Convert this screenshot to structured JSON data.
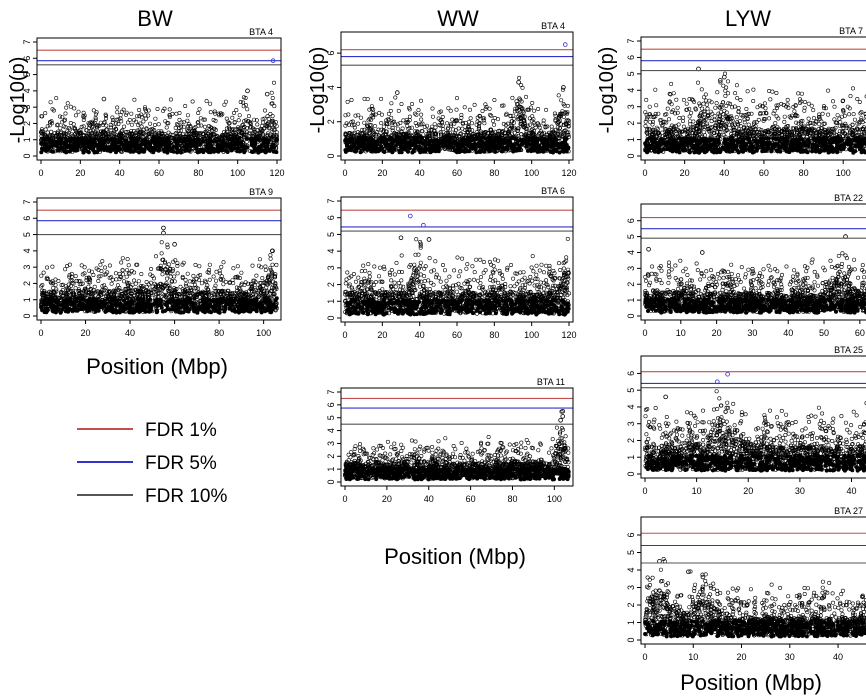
{
  "figure": {
    "columns": [
      {
        "id": "bw",
        "title": "BW",
        "ylabel": "-Log10(p)",
        "xlabel": "Position (Mbp)"
      },
      {
        "id": "ww",
        "title": "WW",
        "ylabel": "-Log10(p)",
        "xlabel": "Position (Mbp)"
      },
      {
        "id": "lyw",
        "title": "LYW",
        "ylabel": "-Log10(p)",
        "xlabel": "Position (Mbp)"
      }
    ],
    "legend": {
      "placement": "left-middle",
      "items": [
        {
          "label": "FDR 1%",
          "color": "#c0504d"
        },
        {
          "label": "FDR 5%",
          "color": "#3333cc"
        },
        {
          "label": "FDR 10%",
          "color": "#555555"
        }
      ]
    }
  },
  "chart_data": [
    {
      "type": "scatter",
      "column": "BW",
      "title": "BTA 4",
      "xlim": [
        0,
        120
      ],
      "ylim": [
        0,
        7
      ],
      "xticks": [
        0,
        20,
        40,
        60,
        80,
        100,
        120
      ],
      "yticks": [
        0,
        1,
        2,
        3,
        4,
        5,
        6,
        7
      ],
      "thresholds": [
        {
          "name": "FDR 1%",
          "y": 6.5
        },
        {
          "name": "FDR 5%",
          "y": 5.85
        },
        {
          "name": "FDR 10%",
          "y": 5.6
        }
      ],
      "notable_points": [
        {
          "x": 118,
          "y": 5.85
        },
        {
          "x": 105,
          "y": 4.0
        },
        {
          "x": 115,
          "y": 3.8
        },
        {
          "x": 32,
          "y": 3.5
        }
      ],
      "baseline": 1.2,
      "spread": 1.0,
      "peaks": [
        {
          "x": 105,
          "h": 1.2
        },
        {
          "x": 117,
          "h": 1.2
        }
      ]
    },
    {
      "type": "scatter",
      "column": "BW",
      "title": "BTA 9",
      "xlim": [
        0,
        106
      ],
      "ylim": [
        0,
        7
      ],
      "xticks": [
        0,
        20,
        40,
        60,
        80,
        100
      ],
      "yticks": [
        0,
        1,
        2,
        3,
        4,
        5,
        6,
        7
      ],
      "thresholds": [
        {
          "name": "FDR 1%",
          "y": 6.5
        },
        {
          "name": "FDR 5%",
          "y": 5.85
        },
        {
          "name": "FDR 10%",
          "y": 5.0
        }
      ],
      "notable_points": [
        {
          "x": 55,
          "y": 5.4
        },
        {
          "x": 55,
          "y": 5.1
        },
        {
          "x": 60,
          "y": 4.4
        },
        {
          "x": 104,
          "y": 4.0
        }
      ],
      "baseline": 1.3,
      "spread": 1.0,
      "peaks": [
        {
          "x": 55,
          "h": 2.0
        },
        {
          "x": 103,
          "h": 1.2
        }
      ]
    },
    {
      "type": "scatter",
      "column": "WW",
      "title": "BTA 4",
      "xlim": [
        0,
        120
      ],
      "ylim": [
        0,
        7
      ],
      "xticks": [
        0,
        20,
        40,
        60,
        80,
        100,
        120
      ],
      "yticks": [
        0,
        2,
        4,
        6
      ],
      "thresholds": [
        {
          "name": "FDR 1%",
          "y": 6.2
        },
        {
          "name": "FDR 5%",
          "y": 5.8
        },
        {
          "name": "FDR 10%",
          "y": 5.3
        }
      ],
      "notable_points": [
        {
          "x": 118,
          "y": 6.5
        },
        {
          "x": 28,
          "y": 3.7
        },
        {
          "x": 93,
          "y": 4.3
        },
        {
          "x": 117,
          "y": 4.0
        }
      ],
      "baseline": 1.1,
      "spread": 1.0,
      "peaks": [
        {
          "x": 93,
          "h": 2.0
        },
        {
          "x": 117,
          "h": 1.8
        }
      ]
    },
    {
      "type": "scatter",
      "column": "WW",
      "title": "BTA 6",
      "xlim": [
        0,
        120
      ],
      "ylim": [
        0,
        7
      ],
      "xticks": [
        0,
        20,
        40,
        60,
        80,
        100,
        120
      ],
      "yticks": [
        0,
        1,
        2,
        3,
        4,
        5,
        6,
        7
      ],
      "thresholds": [
        {
          "name": "FDR 1%",
          "y": 6.45
        },
        {
          "name": "FDR 5%",
          "y": 5.45
        },
        {
          "name": "FDR 10%",
          "y": 5.2
        }
      ],
      "notable_points": [
        {
          "x": 35,
          "y": 6.1
        },
        {
          "x": 42,
          "y": 5.55
        },
        {
          "x": 30,
          "y": 4.8
        },
        {
          "x": 45,
          "y": 4.7
        }
      ],
      "baseline": 1.3,
      "spread": 1.1,
      "peaks": [
        {
          "x": 38,
          "h": 1.8
        },
        {
          "x": 118,
          "h": 1.2
        }
      ]
    },
    {
      "type": "scatter",
      "column": "WW",
      "title": "BTA 11",
      "xlim": [
        0,
        107
      ],
      "ylim": [
        0,
        7
      ],
      "xticks": [
        0,
        20,
        40,
        60,
        80,
        100
      ],
      "yticks": [
        0,
        1,
        2,
        3,
        4,
        5,
        6,
        7
      ],
      "thresholds": [
        {
          "name": "FDR 1%",
          "y": 6.5
        },
        {
          "name": "FDR 5%",
          "y": 5.75
        },
        {
          "name": "FDR 10%",
          "y": 4.5
        }
      ],
      "notable_points": [
        {
          "x": 104,
          "y": 5.5
        },
        {
          "x": 104,
          "y": 5.1
        },
        {
          "x": 103,
          "y": 4.8
        }
      ],
      "baseline": 1.2,
      "spread": 1.0,
      "peaks": [
        {
          "x": 103,
          "h": 2.5
        }
      ]
    },
    {
      "type": "scatter",
      "column": "LYW",
      "title": "BTA 7",
      "xlim": [
        0,
        112
      ],
      "ylim": [
        0,
        7
      ],
      "xticks": [
        0,
        20,
        40,
        60,
        80,
        100
      ],
      "yticks": [
        0,
        1,
        2,
        3,
        4,
        5,
        6,
        7
      ],
      "thresholds": [
        {
          "name": "FDR 1%",
          "y": 6.5
        },
        {
          "name": "FDR 5%",
          "y": 5.8
        },
        {
          "name": "FDR 10%",
          "y": 5.2
        }
      ],
      "notable_points": [
        {
          "x": 27,
          "y": 5.3
        },
        {
          "x": 38,
          "y": 4.6
        },
        {
          "x": 40,
          "y": 4.8
        }
      ],
      "baseline": 1.4,
      "spread": 1.3,
      "peaks": [
        {
          "x": 30,
          "h": 1.5
        },
        {
          "x": 40,
          "h": 1.8
        }
      ]
    },
    {
      "type": "scatter",
      "column": "LYW",
      "title": "BTA 22",
      "xlim": [
        0,
        62
      ],
      "ylim": [
        0,
        6.8
      ],
      "xticks": [
        0,
        10,
        20,
        30,
        40,
        50,
        60
      ],
      "yticks": [
        0,
        1,
        2,
        3,
        4,
        5,
        6
      ],
      "thresholds": [
        {
          "name": "FDR 1%",
          "y": 6.2
        },
        {
          "name": "FDR 5%",
          "y": 5.5
        },
        {
          "name": "FDR 10%",
          "y": 4.9
        }
      ],
      "notable_points": [
        {
          "x": 56,
          "y": 5.0
        },
        {
          "x": 1,
          "y": 4.2
        },
        {
          "x": 16,
          "y": 4.0
        }
      ],
      "baseline": 1.2,
      "spread": 1.0,
      "peaks": [
        {
          "x": 55,
          "h": 1.2
        }
      ]
    },
    {
      "type": "scatter",
      "column": "LYW",
      "title": "BTA 25",
      "xlim": [
        0,
        43
      ],
      "ylim": [
        0,
        6.8
      ],
      "xticks": [
        0,
        10,
        20,
        30,
        40
      ],
      "yticks": [
        0,
        1,
        2,
        3,
        4,
        5,
        6
      ],
      "thresholds": [
        {
          "name": "FDR 1%",
          "y": 6.1
        },
        {
          "name": "FDR 5%",
          "y": 5.4
        },
        {
          "name": "FDR 10%",
          "y": 5.15
        }
      ],
      "notable_points": [
        {
          "x": 16,
          "y": 5.95
        },
        {
          "x": 14,
          "y": 5.5
        },
        {
          "x": 4,
          "y": 4.6
        }
      ],
      "baseline": 1.4,
      "spread": 1.2,
      "peaks": [
        {
          "x": 15,
          "h": 1.5
        }
      ]
    },
    {
      "type": "scatter",
      "column": "LYW",
      "title": "BTA 27",
      "xlim": [
        0,
        46
      ],
      "ylim": [
        0,
        6.8
      ],
      "xticks": [
        0,
        10,
        20,
        30,
        40
      ],
      "yticks": [
        0,
        1,
        2,
        3,
        4,
        5,
        6
      ],
      "thresholds": [
        {
          "name": "FDR 1%",
          "y": 6.1
        },
        {
          "name": "FDR 5%",
          "y": 5.4
        },
        {
          "name": "FDR 10%",
          "y": 4.4
        }
      ],
      "notable_points": [
        {
          "x": 3,
          "y": 4.5
        },
        {
          "x": 9,
          "y": 3.9
        },
        {
          "x": 12,
          "y": 3.6
        }
      ],
      "baseline": 1.0,
      "spread": 1.0,
      "peaks": [
        {
          "x": 3,
          "h": 1.5
        },
        {
          "x": 12,
          "h": 1.2
        }
      ]
    }
  ]
}
